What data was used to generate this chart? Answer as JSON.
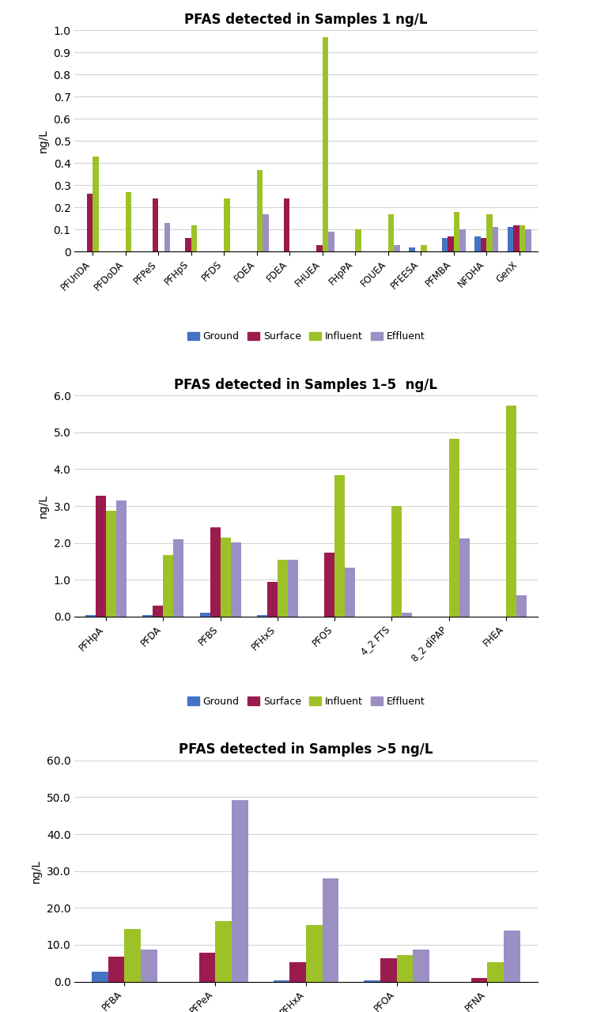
{
  "chart1": {
    "title": "PFAS detected in Samples 1 ng/L",
    "categories": [
      "PFUnDA",
      "PFDoDA",
      "PFPeS",
      "PFHpS",
      "PFDS",
      "FOEA",
      "FDEA",
      "FHUEA",
      "FHpPA",
      "FOUEA",
      "PFEESA",
      "PFMBA",
      "NFDHA",
      "GenX"
    ],
    "ground": [
      0.0,
      0.0,
      0.0,
      0.0,
      0.0,
      0.0,
      0.0,
      0.0,
      0.0,
      0.0,
      0.02,
      0.06,
      0.07,
      0.11
    ],
    "surface": [
      0.26,
      0.0,
      0.24,
      0.06,
      0.0,
      0.0,
      0.24,
      0.03,
      0.0,
      0.0,
      0.0,
      0.07,
      0.06,
      0.12
    ],
    "influent": [
      0.43,
      0.27,
      0.0,
      0.12,
      0.24,
      0.37,
      0.0,
      0.97,
      0.1,
      0.17,
      0.03,
      0.18,
      0.17,
      0.12
    ],
    "effluent": [
      0.0,
      0.0,
      0.13,
      0.0,
      0.0,
      0.17,
      0.0,
      0.09,
      0.0,
      0.03,
      0.0,
      0.1,
      0.11,
      0.1
    ],
    "ylim": [
      0,
      1.0
    ],
    "yticks": [
      0,
      0.1,
      0.2,
      0.3,
      0.4,
      0.5,
      0.6,
      0.7,
      0.8,
      0.9,
      1.0
    ]
  },
  "chart2": {
    "title": "PFAS detected in Samples 1–5  ng/L",
    "categories": [
      "PFHpA",
      "PFDA",
      "PFBS",
      "PFHxS",
      "PFOS",
      "4_2 FTS",
      "8_2 diPAP",
      "FHEA"
    ],
    "ground": [
      0.05,
      0.05,
      0.1,
      0.05,
      0.0,
      0.0,
      0.0,
      0.0
    ],
    "surface": [
      3.28,
      0.3,
      2.43,
      0.95,
      1.73,
      0.0,
      0.0,
      0.0
    ],
    "influent": [
      2.88,
      1.67,
      2.15,
      1.55,
      3.83,
      3.0,
      4.83,
      5.72
    ],
    "effluent": [
      3.15,
      2.1,
      2.02,
      1.54,
      1.33,
      0.1,
      2.13,
      0.58
    ],
    "ylim": [
      0,
      6.0
    ],
    "yticks": [
      0.0,
      1.0,
      2.0,
      3.0,
      4.0,
      5.0,
      6.0
    ]
  },
  "chart3": {
    "title": "PFAS detected in Samples >5 ng/L",
    "categories": [
      "PFBA",
      "PFPeA",
      "PFHxA",
      "PFOA",
      "PFNA"
    ],
    "ground": [
      2.7,
      0.0,
      0.3,
      0.3,
      0.0
    ],
    "surface": [
      6.8,
      7.8,
      5.3,
      6.3,
      1.0
    ],
    "influent": [
      14.3,
      16.5,
      15.4,
      7.3,
      5.3
    ],
    "effluent": [
      8.8,
      49.2,
      27.9,
      8.7,
      13.8
    ],
    "ylim": [
      0,
      60.0
    ],
    "yticks": [
      0.0,
      10.0,
      20.0,
      30.0,
      40.0,
      50.0,
      60.0
    ]
  },
  "colors": {
    "ground": "#4472C4",
    "surface": "#9B1B4F",
    "influent": "#9DC228",
    "effluent": "#9B8FC4"
  },
  "ylabel": "ng/L",
  "bar_width": 0.18,
  "fig_width": 7.55,
  "fig_height": 12.8
}
